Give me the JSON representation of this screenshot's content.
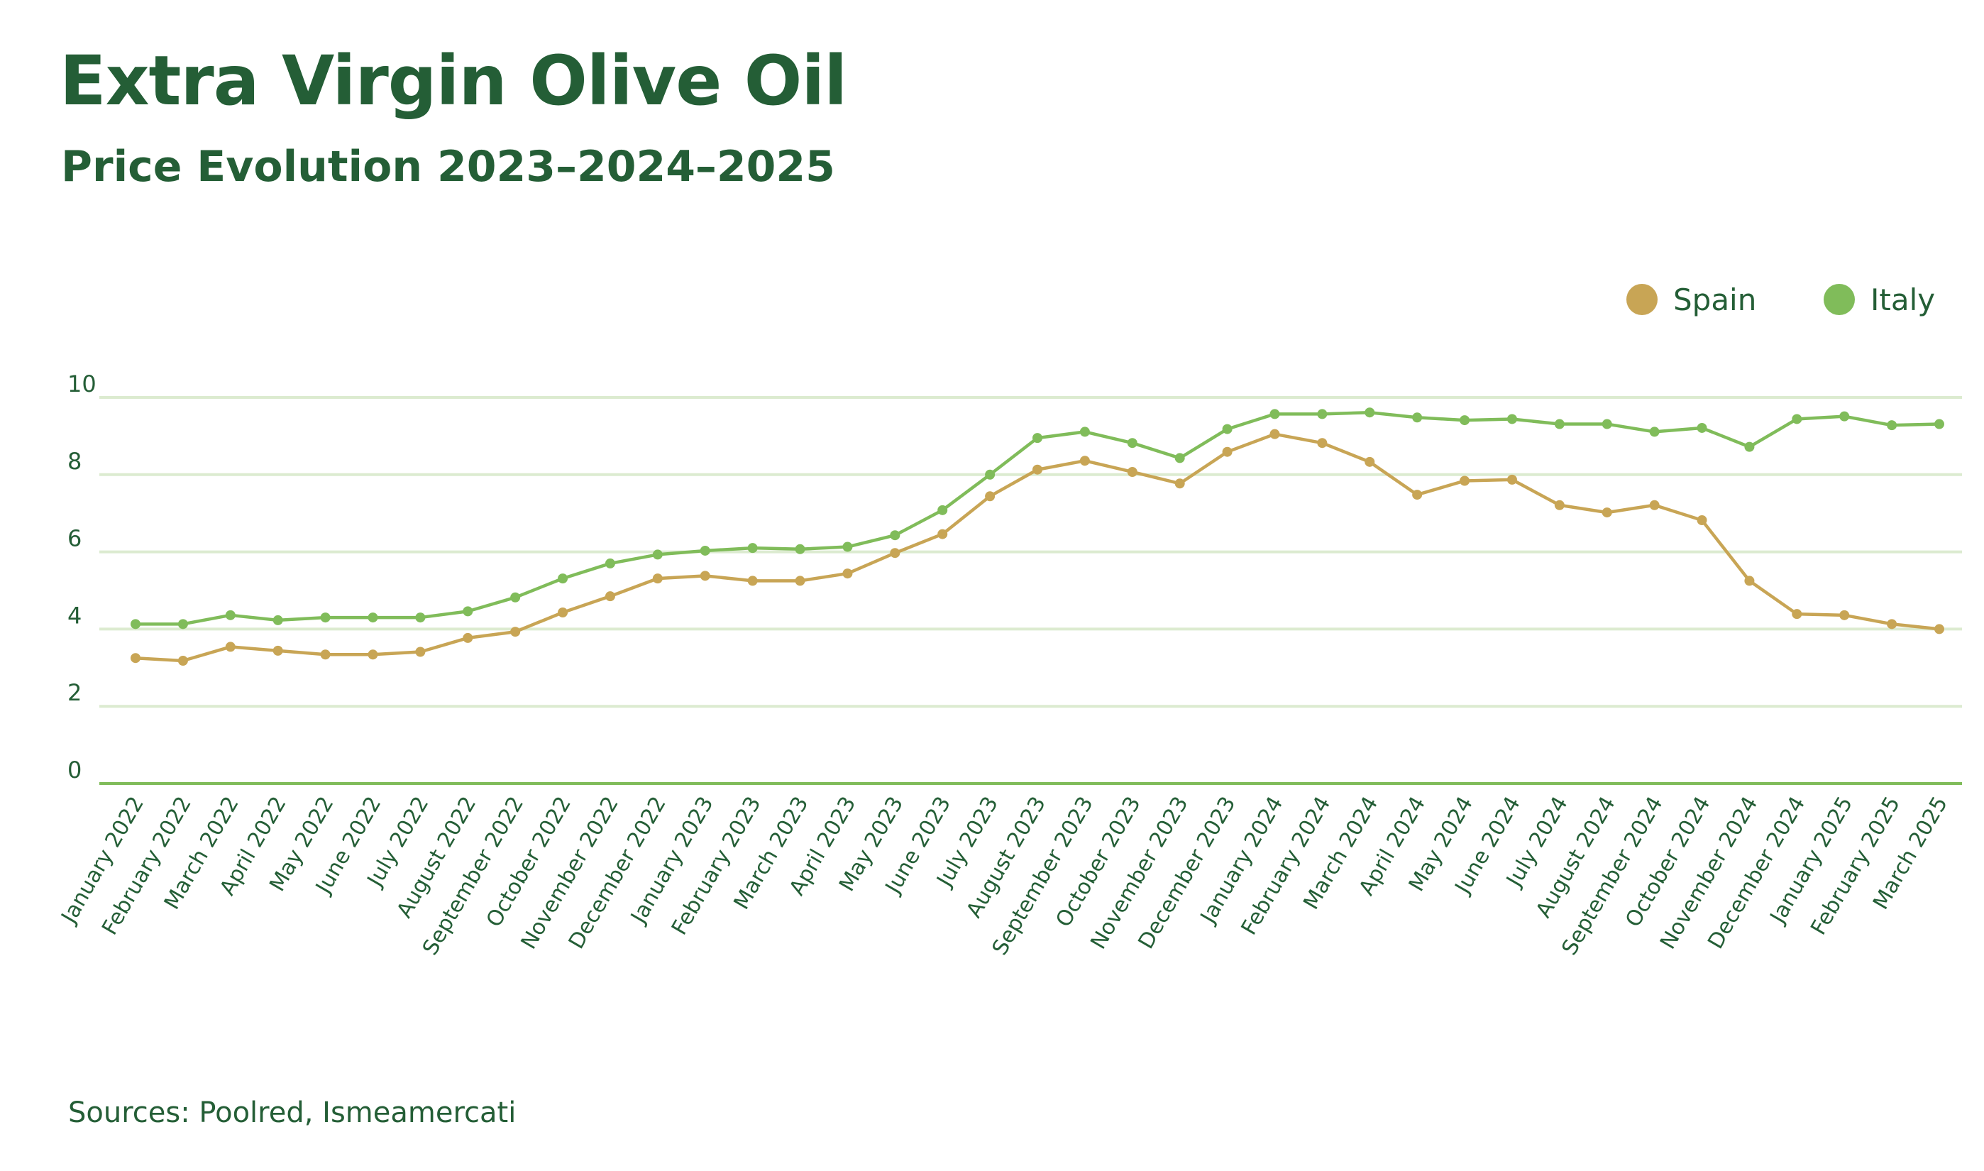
{
  "header": {
    "title": "Extra Virgin Olive Oil",
    "subtitle": "Price Evolution 2023–2024–2025"
  },
  "footer": {
    "sources": "Sources: Poolred, Ismeamercati"
  },
  "chart_data": {
    "type": "line",
    "title": "Extra Virgin Olive Oil",
    "subtitle": "Price Evolution 2023–2024–2025",
    "xlabel": "",
    "ylabel": "",
    "ylim": [
      0,
      10
    ],
    "yticks": [
      "0",
      "2",
      "4",
      "6",
      "8",
      "10"
    ],
    "grid": true,
    "legend_position": "top-right",
    "categories": [
      "January 2022",
      "February 2022",
      "March 2022",
      "April 2022",
      "May 2022",
      "June 2022",
      "July 2022",
      "August 2022",
      "September 2022",
      "October 2022",
      "November 2022",
      "December 2022",
      "January 2023",
      "February 2023",
      "March 2023",
      "April 2023",
      "May 2023",
      "June 2023",
      "July 2023",
      "August 2023",
      "September 2023",
      "October 2023",
      "November 2023",
      "December 2023",
      "January 2024",
      "February 2024",
      "March 2024",
      "April 2024",
      "May 2024",
      "June 2024",
      "July 2024",
      "August 2024",
      "September 2024",
      "October 2024",
      "November 2024",
      "December 2024",
      "January 2025",
      "February 2025",
      "March 2025"
    ],
    "series": [
      {
        "name": "Spain",
        "color": "#c8a555",
        "values": [
          3.25,
          3.18,
          3.54,
          3.44,
          3.34,
          3.34,
          3.41,
          3.77,
          3.93,
          4.43,
          4.85,
          5.31,
          5.38,
          5.25,
          5.25,
          5.44,
          5.97,
          6.46,
          7.44,
          8.13,
          8.36,
          8.07,
          7.77,
          8.59,
          9.05,
          8.82,
          8.33,
          7.48,
          7.84,
          7.87,
          7.21,
          7.02,
          7.21,
          6.82,
          5.25,
          4.39,
          4.36,
          4.13,
          4.0
        ]
      },
      {
        "name": "Italy",
        "color": "#80bc5a",
        "values": [
          4.13,
          4.13,
          4.36,
          4.23,
          4.3,
          4.3,
          4.3,
          4.46,
          4.82,
          5.31,
          5.7,
          5.93,
          6.03,
          6.1,
          6.07,
          6.13,
          6.43,
          7.08,
          8.0,
          8.95,
          9.11,
          8.82,
          8.43,
          9.18,
          9.57,
          9.57,
          9.61,
          9.48,
          9.41,
          9.44,
          9.31,
          9.31,
          9.11,
          9.21,
          8.72,
          9.44,
          9.51,
          9.28,
          9.31
        ]
      }
    ]
  }
}
